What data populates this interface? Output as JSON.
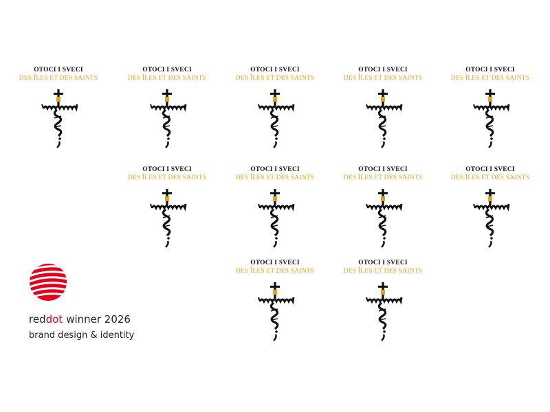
{
  "logos": [
    {
      "title": "OTOCI I SVECI",
      "subtitle": "DES ÎLES ET DES SAINTS"
    },
    {
      "title": "OTOCI I SVECI",
      "subtitle": "DES ÎLES ET DES SAINTS"
    },
    {
      "title": "OTOCI I SVECI",
      "subtitle": "DES ÎLES ET DES SAINTS"
    },
    {
      "title": "OTOCI I SVECI",
      "subtitle": "DES ÎLES ET DES SAINTS"
    },
    {
      "title": "OTOCI I SVECI",
      "subtitle": "DES ÎLES ET DES SAINTS"
    },
    {
      "title": "OTOCI I SVECI",
      "subtitle": "DES ÎLES ET DES SAINTS"
    },
    {
      "title": "OTOCI I SVECI",
      "subtitle": "DES ÎLES ET DES SAINTS"
    },
    {
      "title": "OTOCI I SVECI",
      "subtitle": "DES ÎLES ET DES SAINTS"
    },
    {
      "title": "OTOCI I SVECI",
      "subtitle": "DES ÎLES ET DES SAINTS"
    },
    {
      "title": "OTOCI I SVECI",
      "subtitle": "DES ÎLES ET DES SAINTS"
    },
    {
      "title": "OTOCI I SVECI",
      "subtitle": "DES ÎLES ET DES SAINTS"
    }
  ],
  "award": {
    "red": "red",
    "dot": "dot",
    "winner": "winner 2026",
    "category": "brand design & identity"
  }
}
